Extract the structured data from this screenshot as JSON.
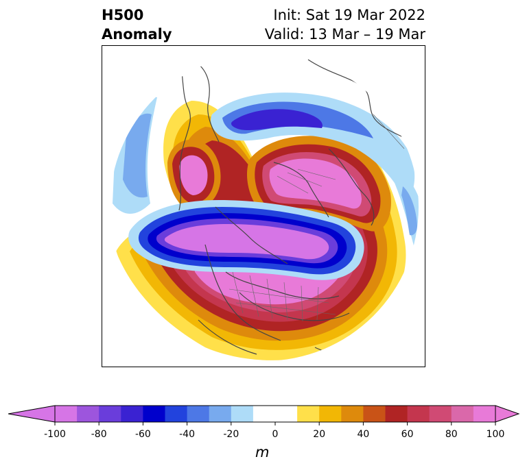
{
  "header": {
    "title_line1": "H500",
    "title_line2": "Anomaly",
    "init_text": "Init: Sat 19 Mar 2022",
    "valid_text": "Valid: 13 Mar – 19 Mar"
  },
  "map": {
    "projection": "north-polar-stereographic",
    "variable": "500 hPa geopotential height anomaly"
  },
  "colorbar": {
    "unit": "m",
    "min": -100,
    "max": 100,
    "step": 10,
    "extend": "both",
    "tick_labels": [
      "-100",
      "-80",
      "-60",
      "-40",
      "-20",
      "0",
      "20",
      "40",
      "60",
      "80",
      "100"
    ],
    "colors": [
      "#d675e6",
      "#9d55dd",
      "#6a3ddb",
      "#3a22d2",
      "#0000cc",
      "#2243dd",
      "#4d78e6",
      "#78aaee",
      "#aedcf8",
      "#ffffff",
      "#ffffff",
      "#ffe04a",
      "#f2b705",
      "#de8a0c",
      "#c95317",
      "#b02424",
      "#c4364e",
      "#d04a74",
      "#da68aa",
      "#e87ad8"
    ]
  }
}
